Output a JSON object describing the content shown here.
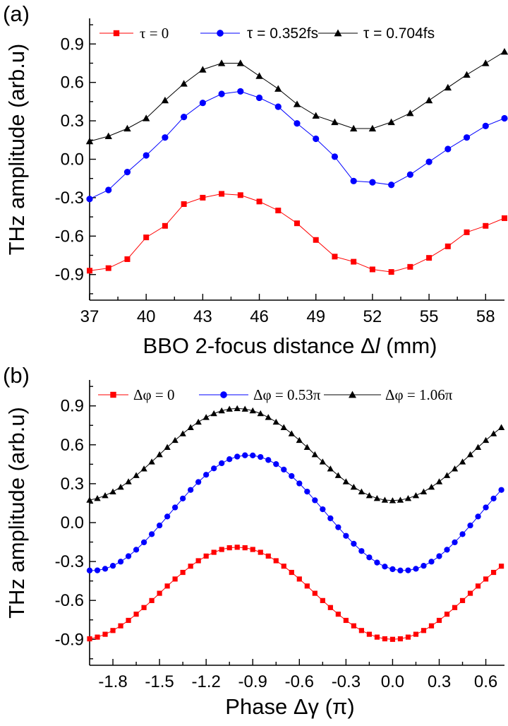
{
  "chart_data": [
    {
      "type": "line",
      "panel_label": "(a)",
      "xlabel_prefix": "BBO 2-focus distance ",
      "xlabel_symbol": "Δ",
      "xlabel_italic": "l",
      "xlabel_suffix": " (mm)",
      "ylabel": "THz amplitude (arb.u)",
      "xlim": [
        37,
        59
      ],
      "ylim": [
        -1.1,
        1.1
      ],
      "x_ticks": [
        37,
        40,
        43,
        46,
        49,
        52,
        55,
        58
      ],
      "x_tick_labels": [
        "37",
        "40",
        "43",
        "46",
        "49",
        "52",
        "55",
        "58"
      ],
      "y_ticks": [
        0.9,
        0.6,
        0.3,
        0.0,
        -0.3,
        -0.6,
        -0.9
      ],
      "y_tick_labels": [
        "0.9",
        "0.6",
        "0.3",
        "0.0",
        "-0.3",
        "-0.6",
        "-0.9"
      ],
      "legend_position": "top",
      "grid": false,
      "x": [
        37,
        38,
        39,
        40,
        41,
        42,
        43,
        44,
        45,
        46,
        47,
        48,
        49,
        50,
        51,
        52,
        53,
        54,
        55,
        56,
        57,
        58,
        59
      ],
      "series": [
        {
          "name": "τ = 0",
          "color": "#ff0000",
          "marker": "square",
          "values": [
            -0.87,
            -0.85,
            -0.78,
            -0.61,
            -0.52,
            -0.35,
            -0.3,
            -0.27,
            -0.28,
            -0.33,
            -0.4,
            -0.5,
            -0.63,
            -0.76,
            -0.8,
            -0.86,
            -0.88,
            -0.84,
            -0.77,
            -0.68,
            -0.57,
            -0.52,
            -0.46
          ]
        },
        {
          "name": "τ = 0.352fs",
          "color": "#0000ff",
          "marker": "circle",
          "values": [
            -0.31,
            -0.24,
            -0.1,
            0.03,
            0.17,
            0.33,
            0.44,
            0.51,
            0.53,
            0.48,
            0.41,
            0.28,
            0.16,
            0.02,
            -0.17,
            -0.18,
            -0.2,
            -0.12,
            -0.02,
            0.08,
            0.17,
            0.26,
            0.32
          ]
        },
        {
          "name": "τ = 0.704fs",
          "color": "#000000",
          "marker": "triangle",
          "values": [
            0.14,
            0.18,
            0.24,
            0.32,
            0.46,
            0.59,
            0.7,
            0.75,
            0.75,
            0.65,
            0.55,
            0.43,
            0.34,
            0.29,
            0.24,
            0.24,
            0.29,
            0.36,
            0.46,
            0.56,
            0.66,
            0.75,
            0.84
          ]
        }
      ]
    },
    {
      "type": "line",
      "panel_label": "(b)",
      "xlabel_prefix": "Phase ",
      "xlabel_symbol": "Δγ",
      "xlabel_italic": "",
      "xlabel_suffix": " (π)",
      "ylabel": "THz amplitude (arb.u)",
      "xlim": [
        -1.95,
        0.72
      ],
      "ylim": [
        -1.1,
        1.1
      ],
      "x_ticks": [
        -1.8,
        -1.5,
        -1.2,
        -0.9,
        -0.6,
        -0.3,
        0.0,
        0.3,
        0.6
      ],
      "x_tick_labels": [
        "-1.8",
        "-1.5",
        "-1.2",
        "-0.9",
        "-0.6",
        "-0.3",
        "0.0",
        "0.3",
        "0.6"
      ],
      "y_ticks": [
        0.9,
        0.6,
        0.3,
        0.0,
        -0.3,
        -0.6,
        -0.9
      ],
      "y_tick_labels": [
        "0.9",
        "0.6",
        "0.3",
        "0.0",
        "-0.3",
        "-0.6",
        "-0.9"
      ],
      "legend_position": "top",
      "grid": false,
      "x_start": -1.95,
      "x_step": 0.05,
      "x_count": 54,
      "series": [
        {
          "name": "Δφ = 0",
          "color": "#ff0000",
          "marker": "square",
          "baseline": -0.545,
          "amplitude": 0.355,
          "phase_center": -1.0,
          "description_hidden": "",
          "values": []
        },
        {
          "name": "Δφ = 0.53π",
          "color": "#0000ff",
          "marker": "circle",
          "baseline": 0.075,
          "amplitude": 0.445,
          "phase_center": -0.93,
          "values": []
        },
        {
          "name": "Δφ = 1.06π",
          "color": "#000000",
          "marker": "triangle",
          "baseline": 0.525,
          "amplitude": 0.355,
          "phase_center": -1.0,
          "values": []
        }
      ]
    }
  ]
}
